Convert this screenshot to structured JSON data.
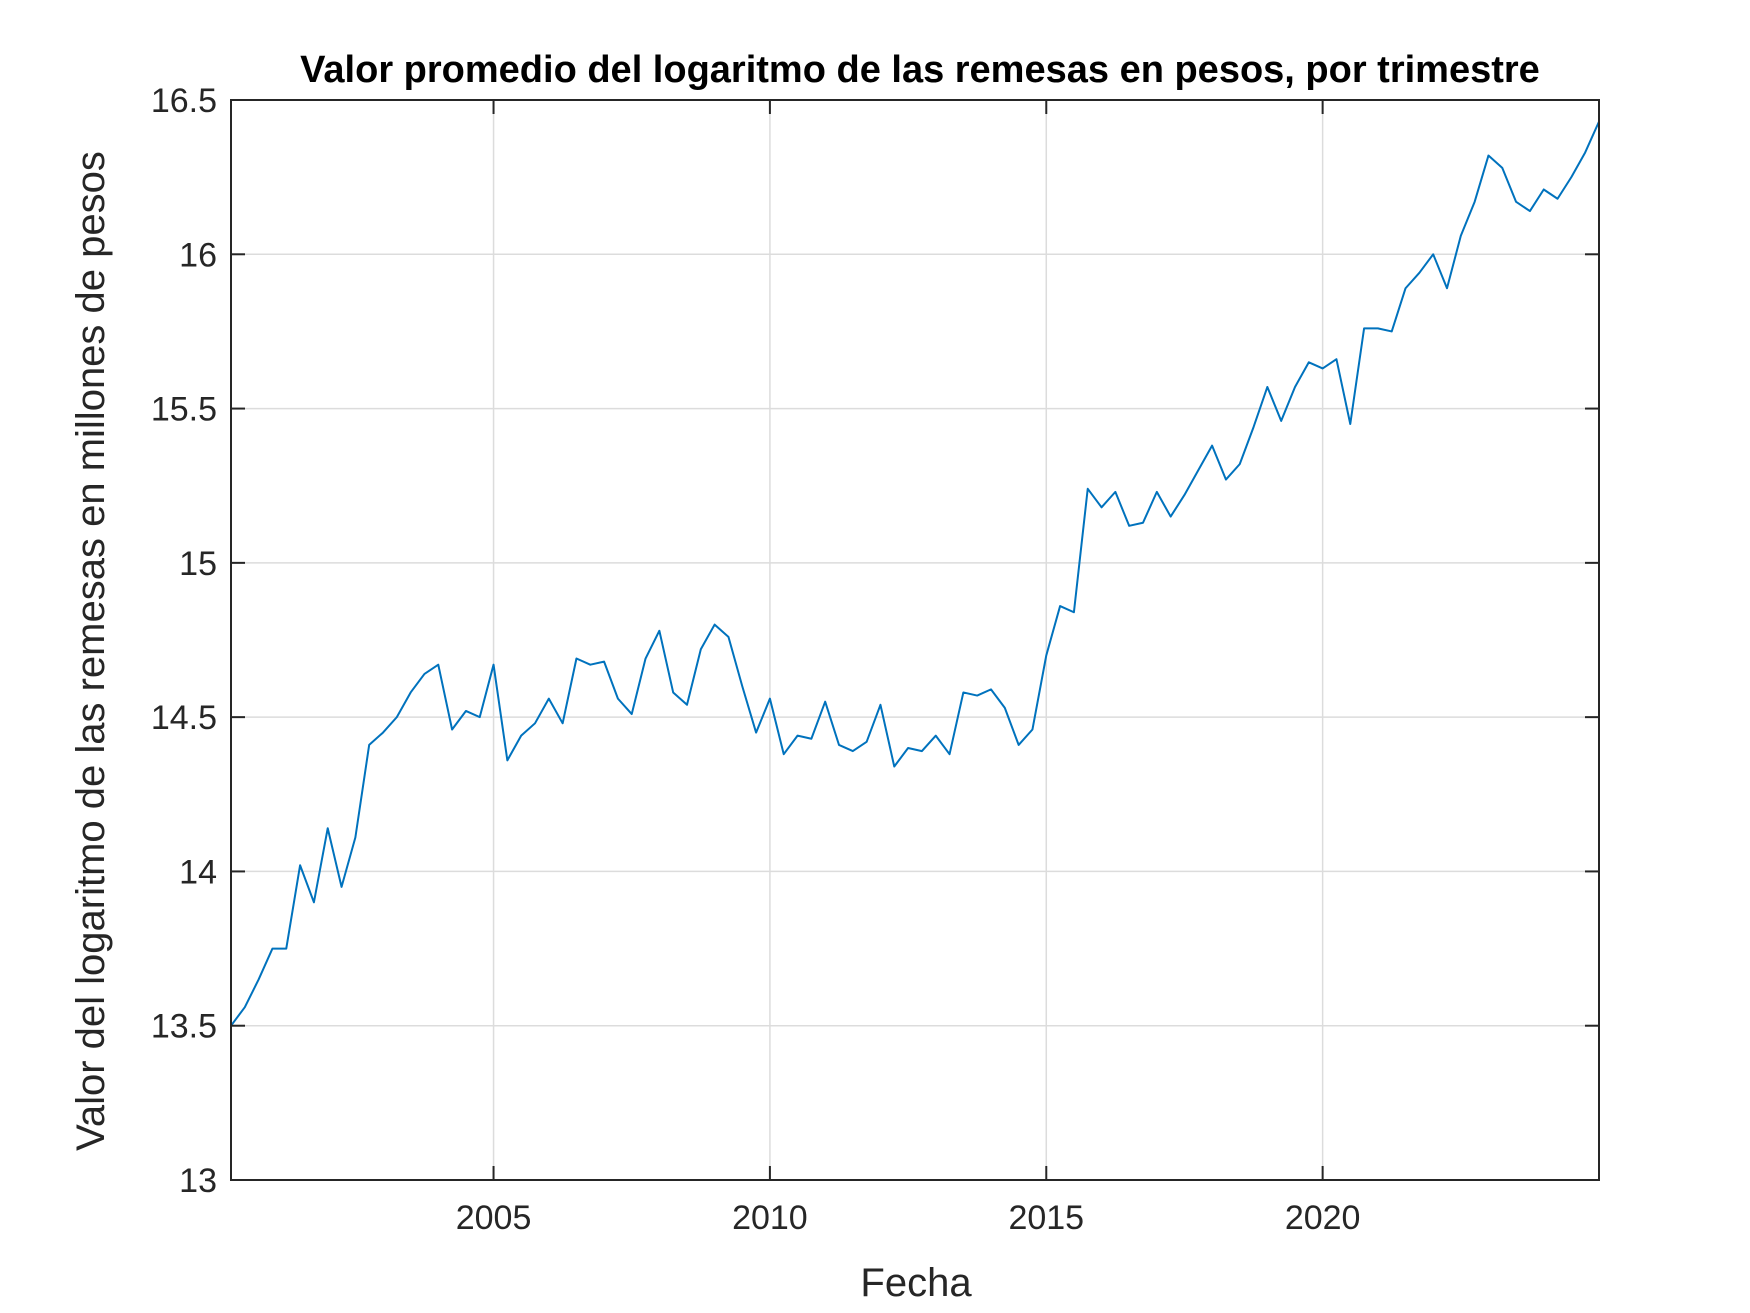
{
  "chart_data": {
    "type": "line",
    "title": "Valor promedio del logaritmo de las remesas en pesos, por trimestre",
    "xlabel": "Fecha",
    "ylabel": "Valor del logaritmo de las remesas en millones de pesos",
    "xlim": [
      2000.25,
      2025.0
    ],
    "ylim": [
      13,
      16.5
    ],
    "xticks": [
      2005,
      2010,
      2015,
      2020
    ],
    "xtick_labels": [
      "2005",
      "2010",
      "2015",
      "2020"
    ],
    "yticks": [
      13,
      13.5,
      14,
      14.5,
      15,
      15.5,
      16,
      16.5
    ],
    "ytick_labels": [
      "13",
      "13.5",
      "14",
      "14.5",
      "15",
      "15.5",
      "16",
      "16.5"
    ],
    "grid": true,
    "series": [
      {
        "color": "#0072BD",
        "x": [
          2000.25,
          2000.5,
          2000.75,
          2001.0,
          2001.25,
          2001.5,
          2001.75,
          2002.0,
          2002.25,
          2002.5,
          2002.75,
          2003.0,
          2003.25,
          2003.5,
          2003.75,
          2004.0,
          2004.25,
          2004.5,
          2004.75,
          2005.0,
          2005.25,
          2005.5,
          2005.75,
          2006.0,
          2006.25,
          2006.5,
          2006.75,
          2007.0,
          2007.25,
          2007.5,
          2007.75,
          2008.0,
          2008.25,
          2008.5,
          2008.75,
          2009.0,
          2009.25,
          2009.5,
          2009.75,
          2010.0,
          2010.25,
          2010.5,
          2010.75,
          2011.0,
          2011.25,
          2011.5,
          2011.75,
          2012.0,
          2012.25,
          2012.5,
          2012.75,
          2013.0,
          2013.25,
          2013.5,
          2013.75,
          2014.0,
          2014.25,
          2014.5,
          2014.75,
          2015.0,
          2015.25,
          2015.5,
          2015.75,
          2016.0,
          2016.25,
          2016.5,
          2016.75,
          2017.0,
          2017.25,
          2017.5,
          2017.75,
          2018.0,
          2018.25,
          2018.5,
          2018.75,
          2019.0,
          2019.25,
          2019.5,
          2019.75,
          2020.0,
          2020.25,
          2020.5,
          2020.75,
          2021.0,
          2021.25,
          2021.5,
          2021.75,
          2022.0,
          2022.25,
          2022.5,
          2022.75,
          2023.0,
          2023.25,
          2023.5,
          2023.75,
          2024.0,
          2024.25,
          2024.5,
          2024.75,
          2025.0
        ],
        "y": [
          13.5,
          13.56,
          13.65,
          13.75,
          13.75,
          14.02,
          13.9,
          14.14,
          13.95,
          14.11,
          14.41,
          14.45,
          14.5,
          14.58,
          14.64,
          14.67,
          14.46,
          14.52,
          14.5,
          14.67,
          14.36,
          14.44,
          14.48,
          14.56,
          14.48,
          14.69,
          14.67,
          14.68,
          14.56,
          14.51,
          14.69,
          14.78,
          14.58,
          14.54,
          14.72,
          14.8,
          14.76,
          14.6,
          14.45,
          14.56,
          14.38,
          14.44,
          14.43,
          14.55,
          14.41,
          14.39,
          14.42,
          14.54,
          14.34,
          14.4,
          14.39,
          14.44,
          14.38,
          14.58,
          14.57,
          14.59,
          14.53,
          14.41,
          14.46,
          14.7,
          14.86,
          14.84,
          15.24,
          15.18,
          15.23,
          15.12,
          15.13,
          15.23,
          15.15,
          15.22,
          15.3,
          15.38,
          15.27,
          15.32,
          15.44,
          15.57,
          15.46,
          15.57,
          15.65,
          15.63,
          15.66,
          15.45,
          15.76,
          15.76,
          15.75,
          15.89,
          15.94,
          16.0,
          15.89,
          16.06,
          16.17,
          16.32,
          16.28,
          16.17,
          16.14,
          16.21,
          16.18,
          16.25,
          16.33,
          16.43
        ]
      }
    ]
  }
}
